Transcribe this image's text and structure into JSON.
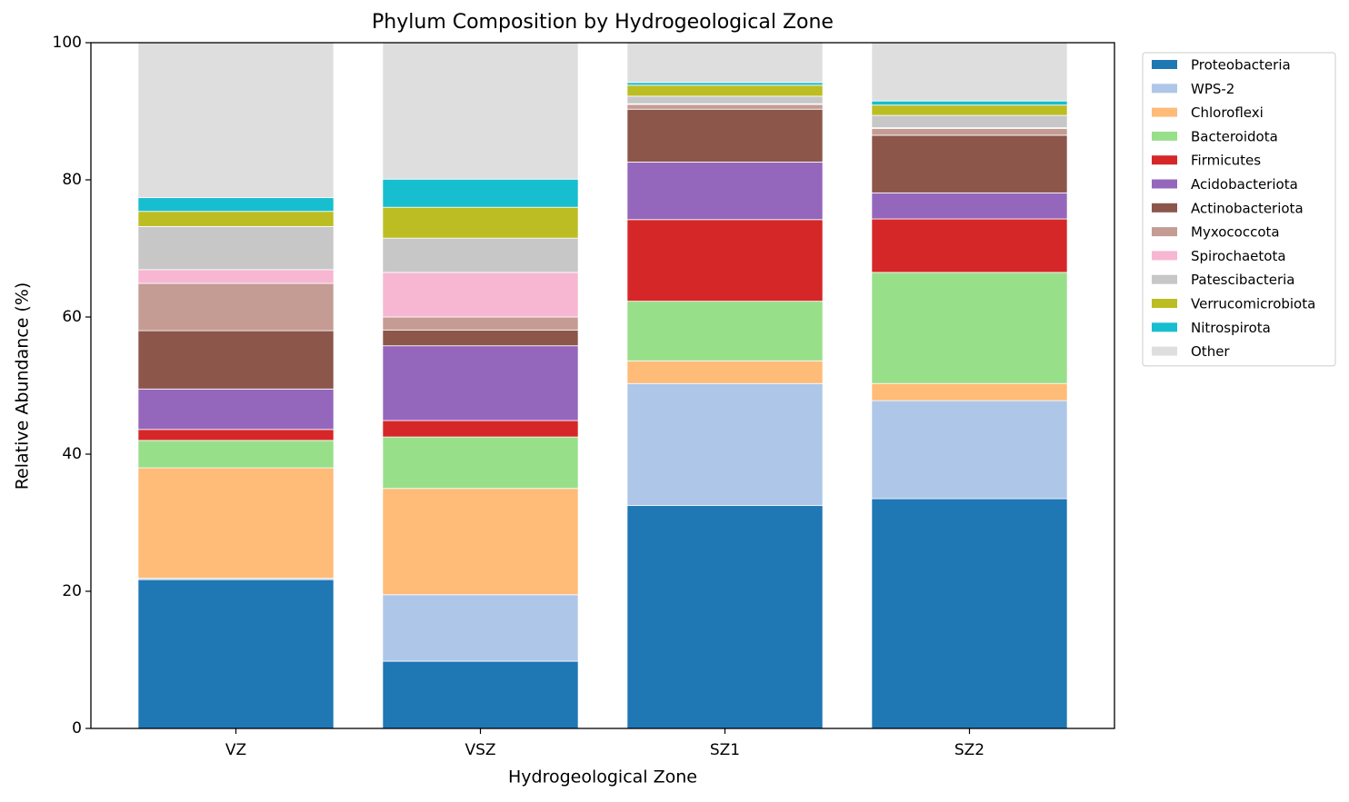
{
  "chart_data": {
    "type": "stacked_bar",
    "title": "Phylum Composition by Hydrogeological Zone",
    "x_label": "Hydrogeological Zone",
    "y_label": "Relative Abundance (%)",
    "categories": [
      "VZ",
      "VSZ",
      "SZ1",
      "SZ2"
    ],
    "series": [
      {
        "name": "Proteobacteria",
        "color": "#1f77b4",
        "values": [
          21.7,
          9.8,
          32.5,
          33.5
        ]
      },
      {
        "name": "WPS-2",
        "color": "#aec7e8",
        "values": [
          0.2,
          9.7,
          17.8,
          14.3
        ]
      },
      {
        "name": "Chloroflexi",
        "color": "#ffbb78",
        "values": [
          16.1,
          15.5,
          3.3,
          2.5
        ]
      },
      {
        "name": "Bacteroidota",
        "color": "#98df8a",
        "values": [
          4.0,
          7.5,
          8.7,
          16.2
        ]
      },
      {
        "name": "Firmicutes",
        "color": "#d62728",
        "values": [
          1.6,
          2.4,
          11.9,
          7.8
        ]
      },
      {
        "name": "Acidobacteriota",
        "color": "#9467bd",
        "values": [
          5.9,
          10.9,
          8.4,
          3.8
        ]
      },
      {
        "name": "Actinobacteriota",
        "color": "#8c564b",
        "values": [
          8.5,
          2.3,
          7.7,
          8.4
        ]
      },
      {
        "name": "Myxococcota",
        "color": "#c49c94",
        "values": [
          6.9,
          1.9,
          0.7,
          1.0
        ]
      },
      {
        "name": "Spirochaetota",
        "color": "#f7b6d2",
        "values": [
          2.0,
          6.5,
          0.1,
          0.1
        ]
      },
      {
        "name": "Patescibacteria",
        "color": "#c7c7c7",
        "values": [
          6.3,
          5.0,
          1.1,
          1.8
        ]
      },
      {
        "name": "Verrucomicrobiota",
        "color": "#bcbd22",
        "values": [
          2.2,
          4.5,
          1.6,
          1.5
        ]
      },
      {
        "name": "Nitrospirota",
        "color": "#17becf",
        "values": [
          2.0,
          4.1,
          0.4,
          0.6
        ]
      },
      {
        "name": "Other",
        "color": "#dedede",
        "values": [
          22.6,
          19.9,
          5.8,
          8.5
        ]
      }
    ],
    "ylim": [
      0,
      100
    ],
    "yticks": [
      0,
      20,
      40,
      60,
      80,
      100
    ],
    "legend": "outside-upper-right"
  }
}
